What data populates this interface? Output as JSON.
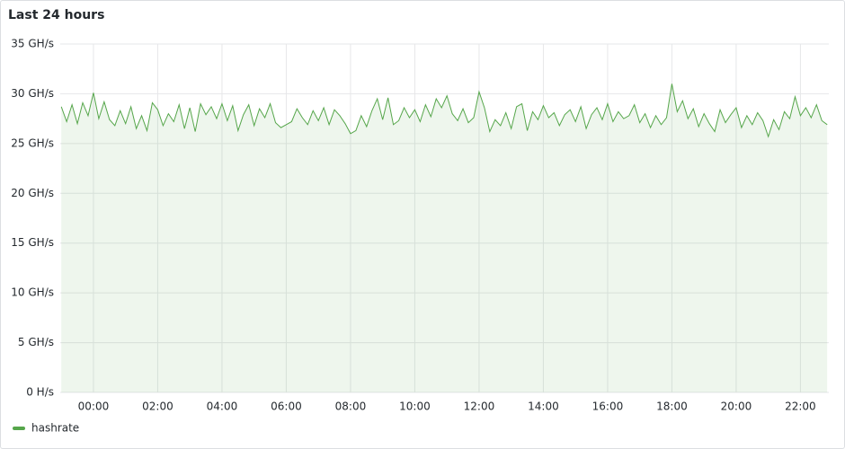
{
  "chart_data": {
    "type": "line",
    "title": "Last 24 hours",
    "x": [
      -60,
      -50,
      -40,
      -30,
      -20,
      -10,
      0,
      10,
      20,
      30,
      40,
      50,
      60,
      70,
      80,
      90,
      100,
      110,
      120,
      130,
      140,
      150,
      160,
      170,
      180,
      190,
      200,
      210,
      220,
      230,
      240,
      250,
      260,
      270,
      280,
      290,
      300,
      310,
      320,
      330,
      340,
      350,
      360,
      370,
      380,
      390,
      400,
      410,
      420,
      430,
      440,
      450,
      460,
      470,
      480,
      490,
      500,
      510,
      520,
      530,
      540,
      550,
      560,
      570,
      580,
      590,
      600,
      610,
      620,
      630,
      640,
      650,
      660,
      670,
      680,
      690,
      700,
      710,
      720,
      730,
      740,
      750,
      760,
      770,
      780,
      790,
      800,
      810,
      820,
      830,
      840,
      850,
      860,
      870,
      880,
      890,
      900,
      910,
      920,
      930,
      940,
      950,
      960,
      970,
      980,
      990,
      1000,
      1010,
      1020,
      1030,
      1040,
      1050,
      1060,
      1070,
      1080,
      1090,
      1100,
      1110,
      1120,
      1130,
      1140,
      1150,
      1160,
      1170,
      1180,
      1190,
      1200,
      1210,
      1220,
      1230,
      1240,
      1250,
      1260,
      1270,
      1280,
      1290,
      1300,
      1310,
      1320,
      1330,
      1340,
      1350,
      1360,
      1370
    ],
    "series": [
      {
        "name": "hashrate",
        "color": "#56a64b",
        "values": [
          28.7,
          27.2,
          28.9,
          27.0,
          29.1,
          27.8,
          30.1,
          27.5,
          29.2,
          27.4,
          26.8,
          28.3,
          27.0,
          28.7,
          26.5,
          27.8,
          26.3,
          29.1,
          28.4,
          26.8,
          28.0,
          27.2,
          28.9,
          26.5,
          28.6,
          26.2,
          29.0,
          27.9,
          28.7,
          27.5,
          29.0,
          27.3,
          28.8,
          26.3,
          27.9,
          28.9,
          26.8,
          28.5,
          27.6,
          29.0,
          27.1,
          26.6,
          26.9,
          27.2,
          28.5,
          27.6,
          26.9,
          28.3,
          27.3,
          28.6,
          26.9,
          28.4,
          27.8,
          27.0,
          26.0,
          26.3,
          27.8,
          26.7,
          28.3,
          29.5,
          27.4,
          29.6,
          26.9,
          27.3,
          28.6,
          27.6,
          28.4,
          27.2,
          28.9,
          27.7,
          29.5,
          28.6,
          29.8,
          28.0,
          27.3,
          28.5,
          27.1,
          27.6,
          30.2,
          28.6,
          26.2,
          27.4,
          26.8,
          28.1,
          26.5,
          28.7,
          29.0,
          26.3,
          28.2,
          27.4,
          28.8,
          27.6,
          28.1,
          26.8,
          27.9,
          28.4,
          27.2,
          28.7,
          26.5,
          27.9,
          28.6,
          27.4,
          29.0,
          27.2,
          28.2,
          27.5,
          27.8,
          28.9,
          27.1,
          28.0,
          26.6,
          27.8,
          26.9,
          27.6,
          31.0,
          28.2,
          29.3,
          27.5,
          28.5,
          26.7,
          28.0,
          27.0,
          26.2,
          28.4,
          27.1,
          27.9,
          28.6,
          26.6,
          27.8,
          26.9,
          28.1,
          27.3,
          25.7,
          27.4,
          26.4,
          28.2,
          27.5,
          29.7,
          27.8,
          28.6,
          27.6,
          28.9,
          27.3,
          26.9
        ]
      }
    ],
    "xlim": [
      -62,
      1373
    ],
    "xticks": [
      {
        "value": 0,
        "label": "00:00"
      },
      {
        "value": 120,
        "label": "02:00"
      },
      {
        "value": 240,
        "label": "04:00"
      },
      {
        "value": 360,
        "label": "06:00"
      },
      {
        "value": 480,
        "label": "08:00"
      },
      {
        "value": 600,
        "label": "10:00"
      },
      {
        "value": 720,
        "label": "12:00"
      },
      {
        "value": 840,
        "label": "14:00"
      },
      {
        "value": 960,
        "label": "16:00"
      },
      {
        "value": 1080,
        "label": "18:00"
      },
      {
        "value": 1200,
        "label": "20:00"
      },
      {
        "value": 1320,
        "label": "22:00"
      }
    ],
    "ylim": [
      0,
      35
    ],
    "yticks": [
      {
        "value": 0,
        "label": "0 H/s"
      },
      {
        "value": 5,
        "label": "5 GH/s"
      },
      {
        "value": 10,
        "label": "10 GH/s"
      },
      {
        "value": 15,
        "label": "15 GH/s"
      },
      {
        "value": 20,
        "label": "20 GH/s"
      },
      {
        "value": 25,
        "label": "25 GH/s"
      },
      {
        "value": 30,
        "label": "30 GH/s"
      },
      {
        "value": 35,
        "label": "35 GH/s"
      }
    ],
    "grid": true,
    "fill_area": true,
    "legend": "bottom-left"
  }
}
